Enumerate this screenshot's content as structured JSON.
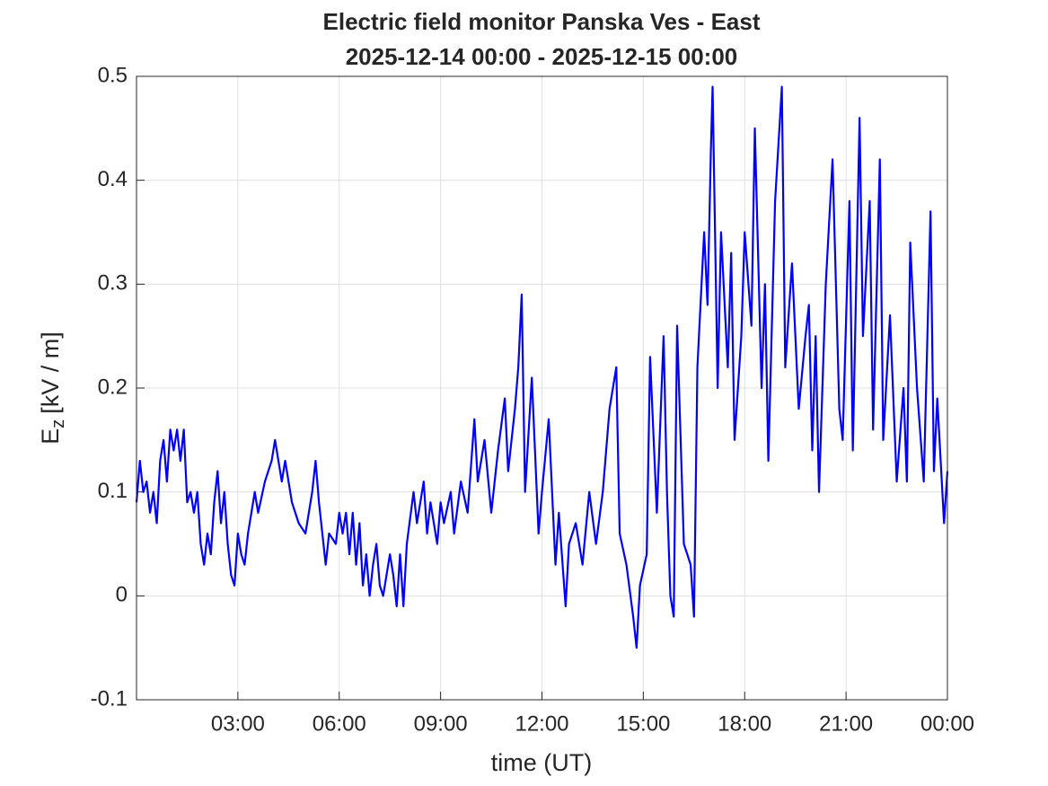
{
  "chart_data": {
    "type": "line",
    "title": "Electric field monitor Panska Ves - East",
    "subtitle": "2025-12-14 00:00 - 2025-12-15 00:00",
    "xlabel": "time (UT)",
    "ylabel": {
      "symbol": "E",
      "subscript": "z",
      "unit": "[kV / m]"
    },
    "color": "#0000ff",
    "grid": true,
    "xlim": [
      0,
      24
    ],
    "ylim": [
      -0.1,
      0.5
    ],
    "xticks": [
      {
        "value": 3,
        "label": "03:00"
      },
      {
        "value": 6,
        "label": "06:00"
      },
      {
        "value": 9,
        "label": "09:00"
      },
      {
        "value": 12,
        "label": "12:00"
      },
      {
        "value": 15,
        "label": "15:00"
      },
      {
        "value": 18,
        "label": "18:00"
      },
      {
        "value": 21,
        "label": "21:00"
      },
      {
        "value": 24,
        "label": "00:00"
      }
    ],
    "yticks": [
      -0.1,
      0,
      0.1,
      0.2,
      0.3,
      0.4,
      0.5
    ],
    "x": [
      0,
      0.1,
      0.2,
      0.3,
      0.4,
      0.5,
      0.6,
      0.7,
      0.8,
      0.9,
      1.0,
      1.1,
      1.2,
      1.3,
      1.4,
      1.5,
      1.6,
      1.7,
      1.8,
      1.9,
      2.0,
      2.1,
      2.2,
      2.3,
      2.4,
      2.5,
      2.6,
      2.7,
      2.8,
      2.9,
      3.0,
      3.1,
      3.2,
      3.3,
      3.5,
      3.6,
      3.8,
      4.0,
      4.1,
      4.3,
      4.4,
      4.6,
      4.8,
      5.0,
      5.2,
      5.3,
      5.4,
      5.6,
      5.7,
      5.9,
      6.0,
      6.1,
      6.2,
      6.3,
      6.4,
      6.5,
      6.6,
      6.7,
      6.8,
      6.9,
      7.0,
      7.1,
      7.2,
      7.3,
      7.5,
      7.6,
      7.7,
      7.8,
      7.9,
      8.0,
      8.2,
      8.3,
      8.5,
      8.6,
      8.7,
      8.9,
      9.0,
      9.1,
      9.3,
      9.4,
      9.6,
      9.8,
      10.0,
      10.1,
      10.3,
      10.5,
      10.7,
      10.9,
      11.0,
      11.2,
      11.3,
      11.4,
      11.5,
      11.7,
      11.9,
      12.0,
      12.2,
      12.4,
      12.5,
      12.7,
      12.8,
      13.0,
      13.2,
      13.4,
      13.6,
      13.8,
      14.0,
      14.2,
      14.3,
      14.5,
      14.7,
      14.8,
      14.9,
      15.1,
      15.2,
      15.4,
      15.6,
      15.7,
      15.8,
      15.9,
      16.0,
      16.2,
      16.4,
      16.5,
      16.6,
      16.8,
      16.9,
      17.0,
      17.05,
      17.2,
      17.3,
      17.5,
      17.6,
      17.7,
      17.9,
      18.0,
      18.2,
      18.3,
      18.5,
      18.6,
      18.7,
      18.9,
      19.1,
      19.2,
      19.4,
      19.6,
      19.8,
      19.9,
      20.0,
      20.1,
      20.2,
      20.4,
      20.6,
      20.8,
      20.9,
      21.1,
      21.2,
      21.4,
      21.5,
      21.7,
      21.8,
      22.0,
      22.1,
      22.3,
      22.5,
      22.7,
      22.8,
      22.9,
      23.1,
      23.3,
      23.5,
      23.6,
      23.7,
      23.9,
      24.0
    ],
    "values": [
      0.09,
      0.13,
      0.1,
      0.11,
      0.08,
      0.1,
      0.07,
      0.13,
      0.15,
      0.11,
      0.16,
      0.14,
      0.16,
      0.13,
      0.16,
      0.09,
      0.1,
      0.08,
      0.1,
      0.05,
      0.03,
      0.06,
      0.04,
      0.09,
      0.12,
      0.07,
      0.1,
      0.05,
      0.02,
      0.01,
      0.06,
      0.04,
      0.03,
      0.06,
      0.1,
      0.08,
      0.11,
      0.13,
      0.15,
      0.11,
      0.13,
      0.09,
      0.07,
      0.06,
      0.1,
      0.13,
      0.09,
      0.03,
      0.06,
      0.05,
      0.08,
      0.06,
      0.08,
      0.04,
      0.08,
      0.03,
      0.07,
      0.01,
      0.04,
      0.0,
      0.03,
      0.05,
      0.01,
      0.0,
      0.04,
      0.02,
      -0.01,
      0.04,
      -0.01,
      0.05,
      0.1,
      0.07,
      0.11,
      0.06,
      0.09,
      0.05,
      0.09,
      0.07,
      0.1,
      0.06,
      0.11,
      0.08,
      0.17,
      0.11,
      0.15,
      0.08,
      0.14,
      0.19,
      0.12,
      0.18,
      0.22,
      0.29,
      0.1,
      0.21,
      0.06,
      0.1,
      0.17,
      0.03,
      0.08,
      -0.01,
      0.05,
      0.07,
      0.03,
      0.1,
      0.05,
      0.1,
      0.18,
      0.22,
      0.06,
      0.03,
      -0.02,
      -0.05,
      0.01,
      0.04,
      0.23,
      0.08,
      0.25,
      0.1,
      0.0,
      -0.02,
      0.26,
      0.05,
      0.03,
      -0.02,
      0.22,
      0.35,
      0.28,
      0.43,
      0.49,
      0.2,
      0.35,
      0.22,
      0.33,
      0.15,
      0.25,
      0.35,
      0.26,
      0.45,
      0.2,
      0.3,
      0.13,
      0.38,
      0.49,
      0.22,
      0.32,
      0.18,
      0.25,
      0.28,
      0.14,
      0.25,
      0.1,
      0.3,
      0.42,
      0.18,
      0.15,
      0.38,
      0.14,
      0.46,
      0.25,
      0.38,
      0.16,
      0.42,
      0.15,
      0.27,
      0.11,
      0.2,
      0.11,
      0.34,
      0.2,
      0.11,
      0.37,
      0.12,
      0.19,
      0.07,
      0.12
    ]
  }
}
